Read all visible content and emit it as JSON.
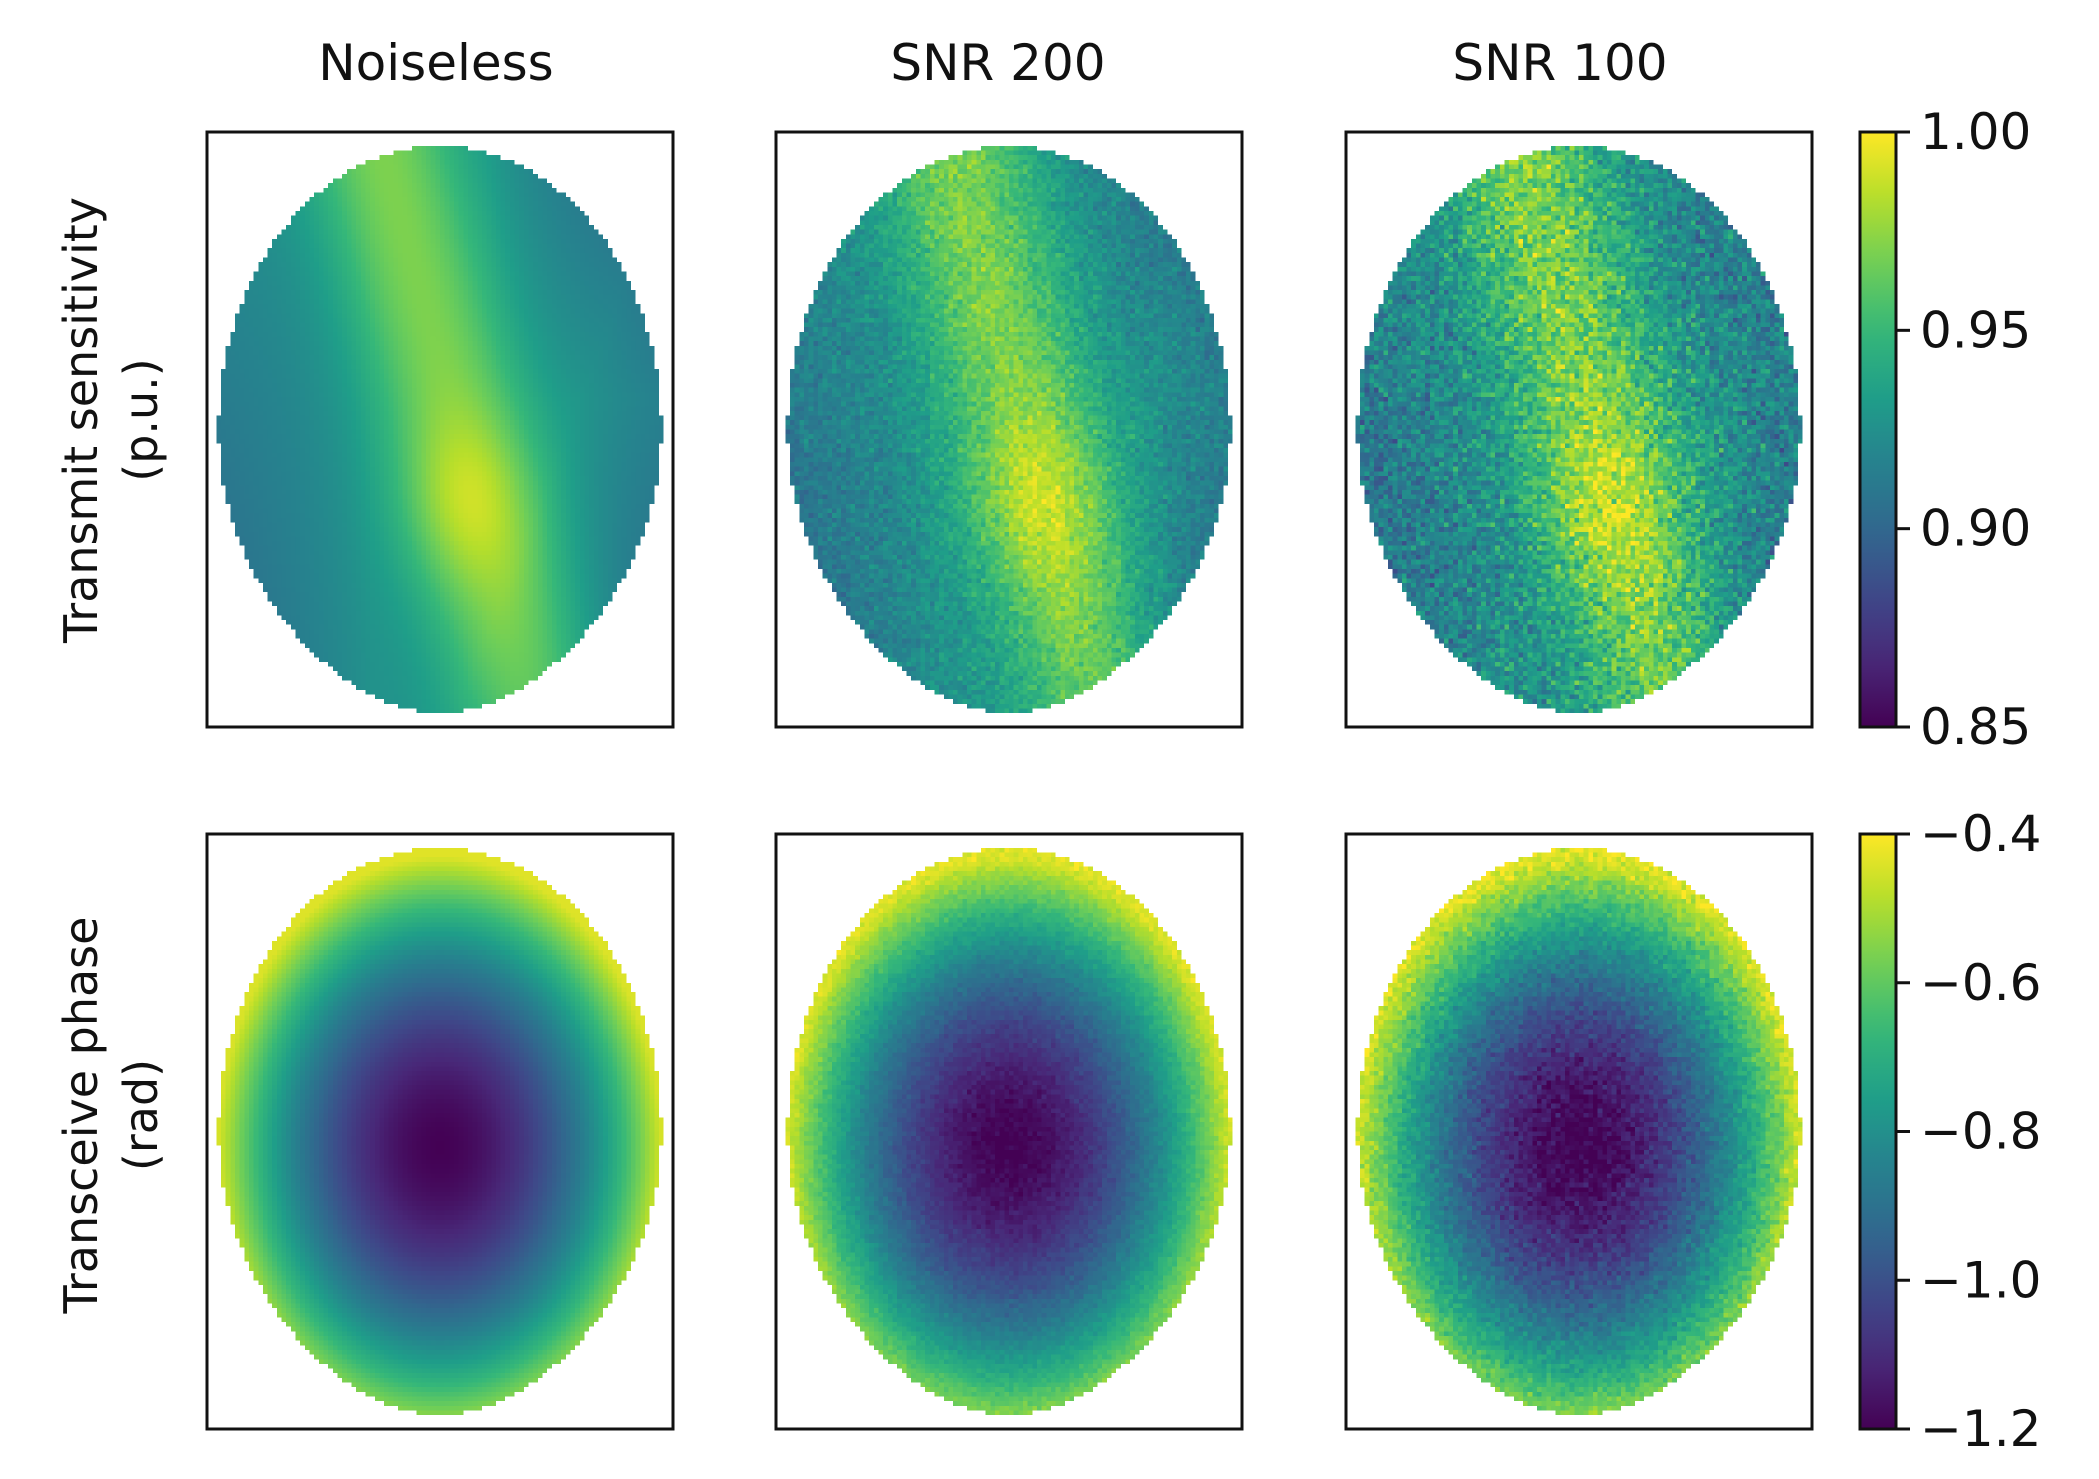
{
  "chart_data": [
    {
      "type": "heatmap",
      "row": "Transmit sensitivity",
      "ylabel_line1": "Transmit sensitivity",
      "ylabel_line2": "(p.u.)",
      "colormap": "viridis",
      "vmin": 0.85,
      "vmax": 1.0,
      "panels": [
        {
          "title": "Noiseless",
          "noise_level": 0.0
        },
        {
          "title": "SNR 200",
          "noise_level": 0.5
        },
        {
          "title": "SNR 100",
          "noise_level": 1.0
        }
      ],
      "colorbar": {
        "ticks": [
          1.0,
          0.95,
          0.9,
          0.85
        ],
        "tick_labels": [
          "1.00",
          "0.95",
          "0.90",
          "0.85"
        ]
      }
    },
    {
      "type": "heatmap",
      "row": "Transceive phase",
      "ylabel_line1": "Transceive phase",
      "ylabel_line2": "(rad)",
      "colormap": "viridis",
      "vmin": -1.2,
      "vmax": -0.4,
      "panels": [
        {
          "title": "Noiseless",
          "noise_level": 0.0
        },
        {
          "title": "SNR 200",
          "noise_level": 0.5
        },
        {
          "title": "SNR 100",
          "noise_level": 1.0
        }
      ],
      "colorbar": {
        "ticks": [
          -0.4,
          -0.6,
          -0.8,
          -1.0,
          -1.2
        ],
        "tick_labels": [
          "−0.4",
          "−0.6",
          "−0.8",
          "−1.0",
          "−1.2"
        ]
      }
    }
  ],
  "colors": {
    "viridis": [
      "#440154",
      "#482878",
      "#3e4989",
      "#31688e",
      "#26828e",
      "#1f9e89",
      "#35b779",
      "#6ece58",
      "#b5de2b",
      "#fde725"
    ],
    "axis": "#111111",
    "background": "#ffffff"
  }
}
